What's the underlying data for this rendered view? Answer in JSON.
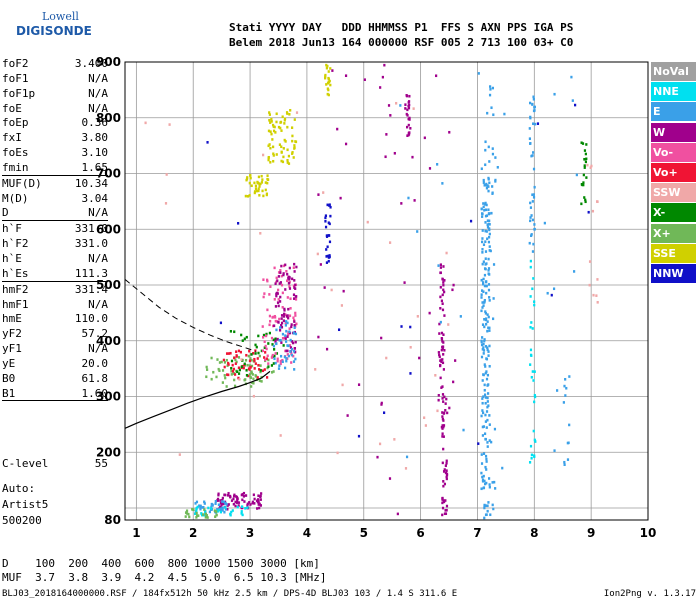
{
  "logo": {
    "line1": "Lowell",
    "line2": "DIGISONDE"
  },
  "header": {
    "line1": "Stati YYYY DAY   DDD HHMMSS P1  FFS S AXN PPS IGA PS",
    "line2": "Belem 2018 Jun13 164 000000 RSF 005 2 713 100 03+ C0"
  },
  "params": [
    {
      "label": "foF2",
      "value": "3.400"
    },
    {
      "label": "foF1",
      "value": "N/A"
    },
    {
      "label": "foF1p",
      "value": "N/A"
    },
    {
      "label": "foE",
      "value": "N/A"
    },
    {
      "label": "foEp",
      "value": "0.36"
    },
    {
      "label": "fxI",
      "value": "3.80"
    },
    {
      "label": "foEs",
      "value": "3.10"
    },
    {
      "label": "fmin",
      "value": "1.65",
      "sep": true
    },
    {
      "label": "MUF(D)",
      "value": "10.34"
    },
    {
      "label": "M(D)",
      "value": "3.04"
    },
    {
      "label": "D",
      "value": "N/A",
      "sep": true
    },
    {
      "label": "h`F",
      "value": "331.0"
    },
    {
      "label": "h`F2",
      "value": "331.0"
    },
    {
      "label": "h`E",
      "value": "N/A"
    },
    {
      "label": "h`Es",
      "value": "111.3",
      "sep": true
    },
    {
      "label": "hmF2",
      "value": "331.4"
    },
    {
      "label": "hmF1",
      "value": "N/A"
    },
    {
      "label": "hmE",
      "value": "110.0"
    },
    {
      "label": "yF2",
      "value": "57.2"
    },
    {
      "label": "yF1",
      "value": "N/A"
    },
    {
      "label": "yE",
      "value": "20.0"
    },
    {
      "label": "B0",
      "value": "61.8"
    },
    {
      "label": "B1",
      "value": "1.60",
      "sep": true
    }
  ],
  "clevel": {
    "label": "C-level",
    "value": "55"
  },
  "auto": {
    "line1": "Auto:",
    "line2": "Artist5",
    "line3": "500200"
  },
  "legend": [
    {
      "label": "NoVal",
      "color": "#a0a0a0"
    },
    {
      "label": "NNE",
      "color": "#00e0f0"
    },
    {
      "label": "E",
      "color": "#3aa0e8"
    },
    {
      "label": "W",
      "color": "#a0008c"
    },
    {
      "label": "Vo-",
      "color": "#f050a0"
    },
    {
      "label": "Vo+",
      "color": "#f01434"
    },
    {
      "label": "SSW",
      "color": "#f0a8a8"
    },
    {
      "label": "X-",
      "color": "#008800"
    },
    {
      "label": "X+",
      "color": "#70b858"
    },
    {
      "label": "SSE",
      "color": "#d0d000"
    },
    {
      "label": "NNW",
      "color": "#1010c8"
    }
  ],
  "chart_data": {
    "type": "scatter",
    "title": "",
    "xlabel": "",
    "ylabel": "",
    "xlim": [
      0.8,
      10
    ],
    "ylim": [
      80,
      900
    ],
    "x_ticks": [
      "1",
      "2",
      "3",
      "4",
      "5",
      "6",
      "7",
      "8",
      "9",
      "10"
    ],
    "y_ticks": [
      "80",
      "200",
      "300",
      "400",
      "500",
      "600",
      "700",
      "800",
      "900"
    ],
    "x_tick_values": [
      1,
      2,
      3,
      4,
      5,
      6,
      7,
      8,
      9,
      10
    ],
    "y_tick_values": [
      80,
      200,
      300,
      400,
      500,
      600,
      700,
      800,
      900
    ],
    "y_grid_values": [
      80,
      100,
      200,
      300,
      400,
      500,
      600,
      700,
      800,
      900
    ],
    "grid": true,
    "profile": [
      [
        0.8,
        243
      ],
      [
        1.0,
        252
      ],
      [
        1.3,
        264
      ],
      [
        1.6,
        276
      ],
      [
        1.9,
        288
      ],
      [
        2.2,
        299
      ],
      [
        2.5,
        309
      ],
      [
        2.8,
        318
      ],
      [
        3.0,
        325
      ],
      [
        3.2,
        333
      ],
      [
        3.35,
        345
      ]
    ],
    "dashed": [
      [
        0.8,
        510
      ],
      [
        1.1,
        485
      ],
      [
        1.4,
        460
      ],
      [
        1.7,
        440
      ],
      [
        2.0,
        424
      ],
      [
        2.3,
        410
      ],
      [
        2.6,
        398
      ],
      [
        2.9,
        388
      ],
      [
        3.1,
        381
      ]
    ],
    "clusters": [
      {
        "color": "#70b858",
        "x": [
          2.2,
          3.4
        ],
        "y": [
          320,
          375
        ],
        "n": 70
      },
      {
        "color": "#f01434",
        "x": [
          2.5,
          3.3
        ],
        "y": [
          335,
          385
        ],
        "n": 50
      },
      {
        "color": "#008800",
        "x": [
          2.6,
          3.6
        ],
        "y": [
          340,
          420
        ],
        "n": 40
      },
      {
        "color": "#f050a0",
        "x": [
          3.2,
          3.8
        ],
        "y": [
          360,
          540
        ],
        "n": 90
      },
      {
        "color": "#a0008c",
        "x": [
          3.4,
          3.8
        ],
        "y": [
          380,
          540
        ],
        "n": 80
      },
      {
        "color": "#3aa0e8",
        "x": [
          3.4,
          3.8
        ],
        "y": [
          350,
          440
        ],
        "n": 40
      },
      {
        "color": "#d0d000",
        "x": [
          3.3,
          3.8
        ],
        "y": [
          720,
          820
        ],
        "n": 70
      },
      {
        "color": "#d0d000",
        "x": [
          2.9,
          3.3
        ],
        "y": [
          660,
          700
        ],
        "n": 40
      },
      {
        "color": "#d0d000",
        "x": [
          4.3,
          4.4
        ],
        "y": [
          840,
          900
        ],
        "n": 20
      },
      {
        "color": "#a0008c",
        "x": [
          2.4,
          3.2
        ],
        "y": [
          100,
          130
        ],
        "n": 80
      },
      {
        "color": "#3aa0e8",
        "x": [
          2.0,
          2.6
        ],
        "y": [
          95,
          115
        ],
        "n": 40
      },
      {
        "color": "#00e0f0",
        "x": [
          2.0,
          3.0
        ],
        "y": [
          90,
          105
        ],
        "n": 30
      },
      {
        "color": "#70b858",
        "x": [
          1.8,
          2.4
        ],
        "y": [
          85,
          100
        ],
        "n": 25
      },
      {
        "color": "#a0008c",
        "x": [
          5.7,
          5.8
        ],
        "y": [
          770,
          850
        ],
        "n": 25
      },
      {
        "color": "#a0008c",
        "x": [
          6.3,
          6.4
        ],
        "y": [
          300,
          560
        ],
        "n": 50
      },
      {
        "color": "#a0008c",
        "x": [
          6.35,
          6.45
        ],
        "y": [
          90,
          300
        ],
        "n": 50
      },
      {
        "color": "#1010c8",
        "x": [
          4.3,
          4.4
        ],
        "y": [
          540,
          650
        ],
        "n": 25
      },
      {
        "color": "#3aa0e8",
        "x": [
          7.05,
          7.2
        ],
        "y": [
          80,
          720
        ],
        "n": 180
      },
      {
        "color": "#3aa0e8",
        "x": [
          7.1,
          7.3
        ],
        "y": [
          80,
          860
        ],
        "n": 60
      },
      {
        "color": "#3aa0e8",
        "x": [
          7.9,
          8.0
        ],
        "y": [
          560,
          840
        ],
        "n": 40
      },
      {
        "color": "#00e0f0",
        "x": [
          7.9,
          8.0
        ],
        "y": [
          180,
          560
        ],
        "n": 30
      },
      {
        "color": "#008800",
        "x": [
          8.8,
          8.9
        ],
        "y": [
          640,
          760
        ],
        "n": 20
      },
      {
        "color": "#f0a8a8",
        "x": [
          8.9,
          9.1
        ],
        "y": [
          470,
          780
        ],
        "n": 12
      },
      {
        "color": "#3aa0e8",
        "x": [
          8.5,
          8.6
        ],
        "y": [
          160,
          340
        ],
        "n": 12
      },
      {
        "color": "#a0008c",
        "x": [
          4.0,
          6.6
        ],
        "y": [
          90,
          900
        ],
        "n": 45
      },
      {
        "color": "#f0a8a8",
        "x": [
          1.0,
          6.6
        ],
        "y": [
          130,
          900
        ],
        "n": 35
      },
      {
        "color": "#1010c8",
        "x": [
          2.0,
          9.5
        ],
        "y": [
          150,
          900
        ],
        "n": 15
      },
      {
        "color": "#3aa0e8",
        "x": [
          5.5,
          8.8
        ],
        "y": [
          90,
          900
        ],
        "n": 25
      }
    ]
  },
  "distance_muf": {
    "line1": "D    100  200  400  600  800 1000 1500 3000 [km]",
    "line2": "MUF  3.7  3.8  3.9  4.2  4.5  5.0  6.5 10.3 [MHz]"
  },
  "footer": "BLJ03_2018164000000.RSF / 184fx512h 50 kHz 2.5 km / DPS-4D BLJ03 103 / 1.4 S 311.6 E",
  "version": "Ion2Png v. 1.3.17"
}
